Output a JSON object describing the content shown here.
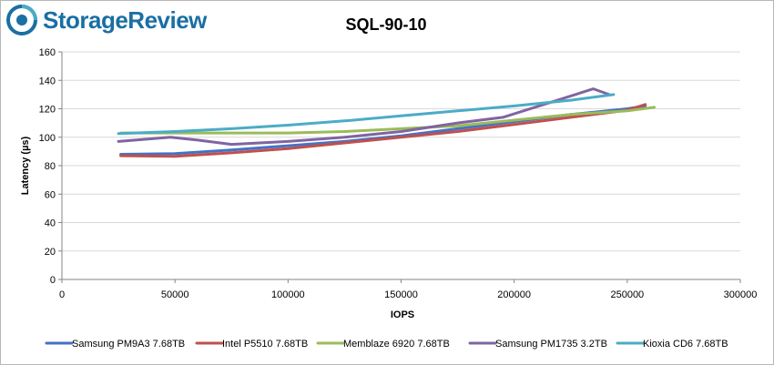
{
  "brand": {
    "name": "StorageReview",
    "color": "#1a6fa3",
    "icon": "storagereview-logo-icon"
  },
  "chart_data": {
    "type": "line",
    "title": "SQL-90-10",
    "xlabel": "IOPS",
    "ylabel": "Latency (µs)",
    "xlim": [
      0,
      300000
    ],
    "ylim": [
      0,
      160
    ],
    "xticks": [
      0,
      50000,
      100000,
      150000,
      200000,
      250000,
      300000
    ],
    "xtick_labels": [
      "0",
      "50000",
      "100000",
      "150000",
      "200000",
      "250000",
      "300000"
    ],
    "yticks": [
      0,
      20,
      40,
      60,
      80,
      100,
      120,
      140,
      160
    ],
    "ytick_labels": [
      "0",
      "20",
      "40",
      "60",
      "80",
      "100",
      "120",
      "140",
      "160"
    ],
    "grid": "horizontal",
    "legend": "bottom",
    "series": [
      {
        "name": "Samsung PM9A3 7.68TB",
        "color": "#4472c4",
        "x": [
          26000,
          50000,
          75000,
          100000,
          125000,
          150000,
          175000,
          200000,
          225000,
          250000,
          258000
        ],
        "y": [
          88,
          88.5,
          91,
          94,
          97,
          101,
          106,
          111,
          116,
          120,
          122
        ]
      },
      {
        "name": "Intel P5510 7.68TB",
        "color": "#c0504d",
        "x": [
          26000,
          50000,
          75000,
          100000,
          125000,
          150000,
          175000,
          200000,
          225000,
          250000,
          258000
        ],
        "y": [
          87,
          86.5,
          89,
          92,
          96,
          100,
          104,
          109,
          114,
          119,
          123
        ]
      },
      {
        "name": "Memblaze 6920 7.68TB",
        "color": "#9bbb59",
        "x": [
          26000,
          50000,
          75000,
          100000,
          125000,
          150000,
          175000,
          200000,
          225000,
          250000,
          262000
        ],
        "y": [
          103,
          103,
          103,
          103,
          104,
          106,
          108,
          112,
          116,
          118.5,
          121
        ]
      },
      {
        "name": "Samsung PM1735 3.2TB",
        "color": "#8064a2",
        "x": [
          25000,
          48000,
          60000,
          75000,
          100000,
          125000,
          150000,
          175000,
          195000,
          215000,
          235000,
          242000
        ],
        "y": [
          97,
          100,
          98,
          95,
          97,
          100,
          104,
          110,
          114,
          124,
          134,
          130
        ]
      },
      {
        "name": "Kioxia CD6 7.68TB",
        "color": "#4bacc6",
        "x": [
          25000,
          50000,
          75000,
          100000,
          125000,
          150000,
          175000,
          200000,
          225000,
          244000
        ],
        "y": [
          102.5,
          104,
          106,
          108.5,
          111.5,
          115,
          118.5,
          122,
          126,
          130
        ]
      }
    ]
  }
}
